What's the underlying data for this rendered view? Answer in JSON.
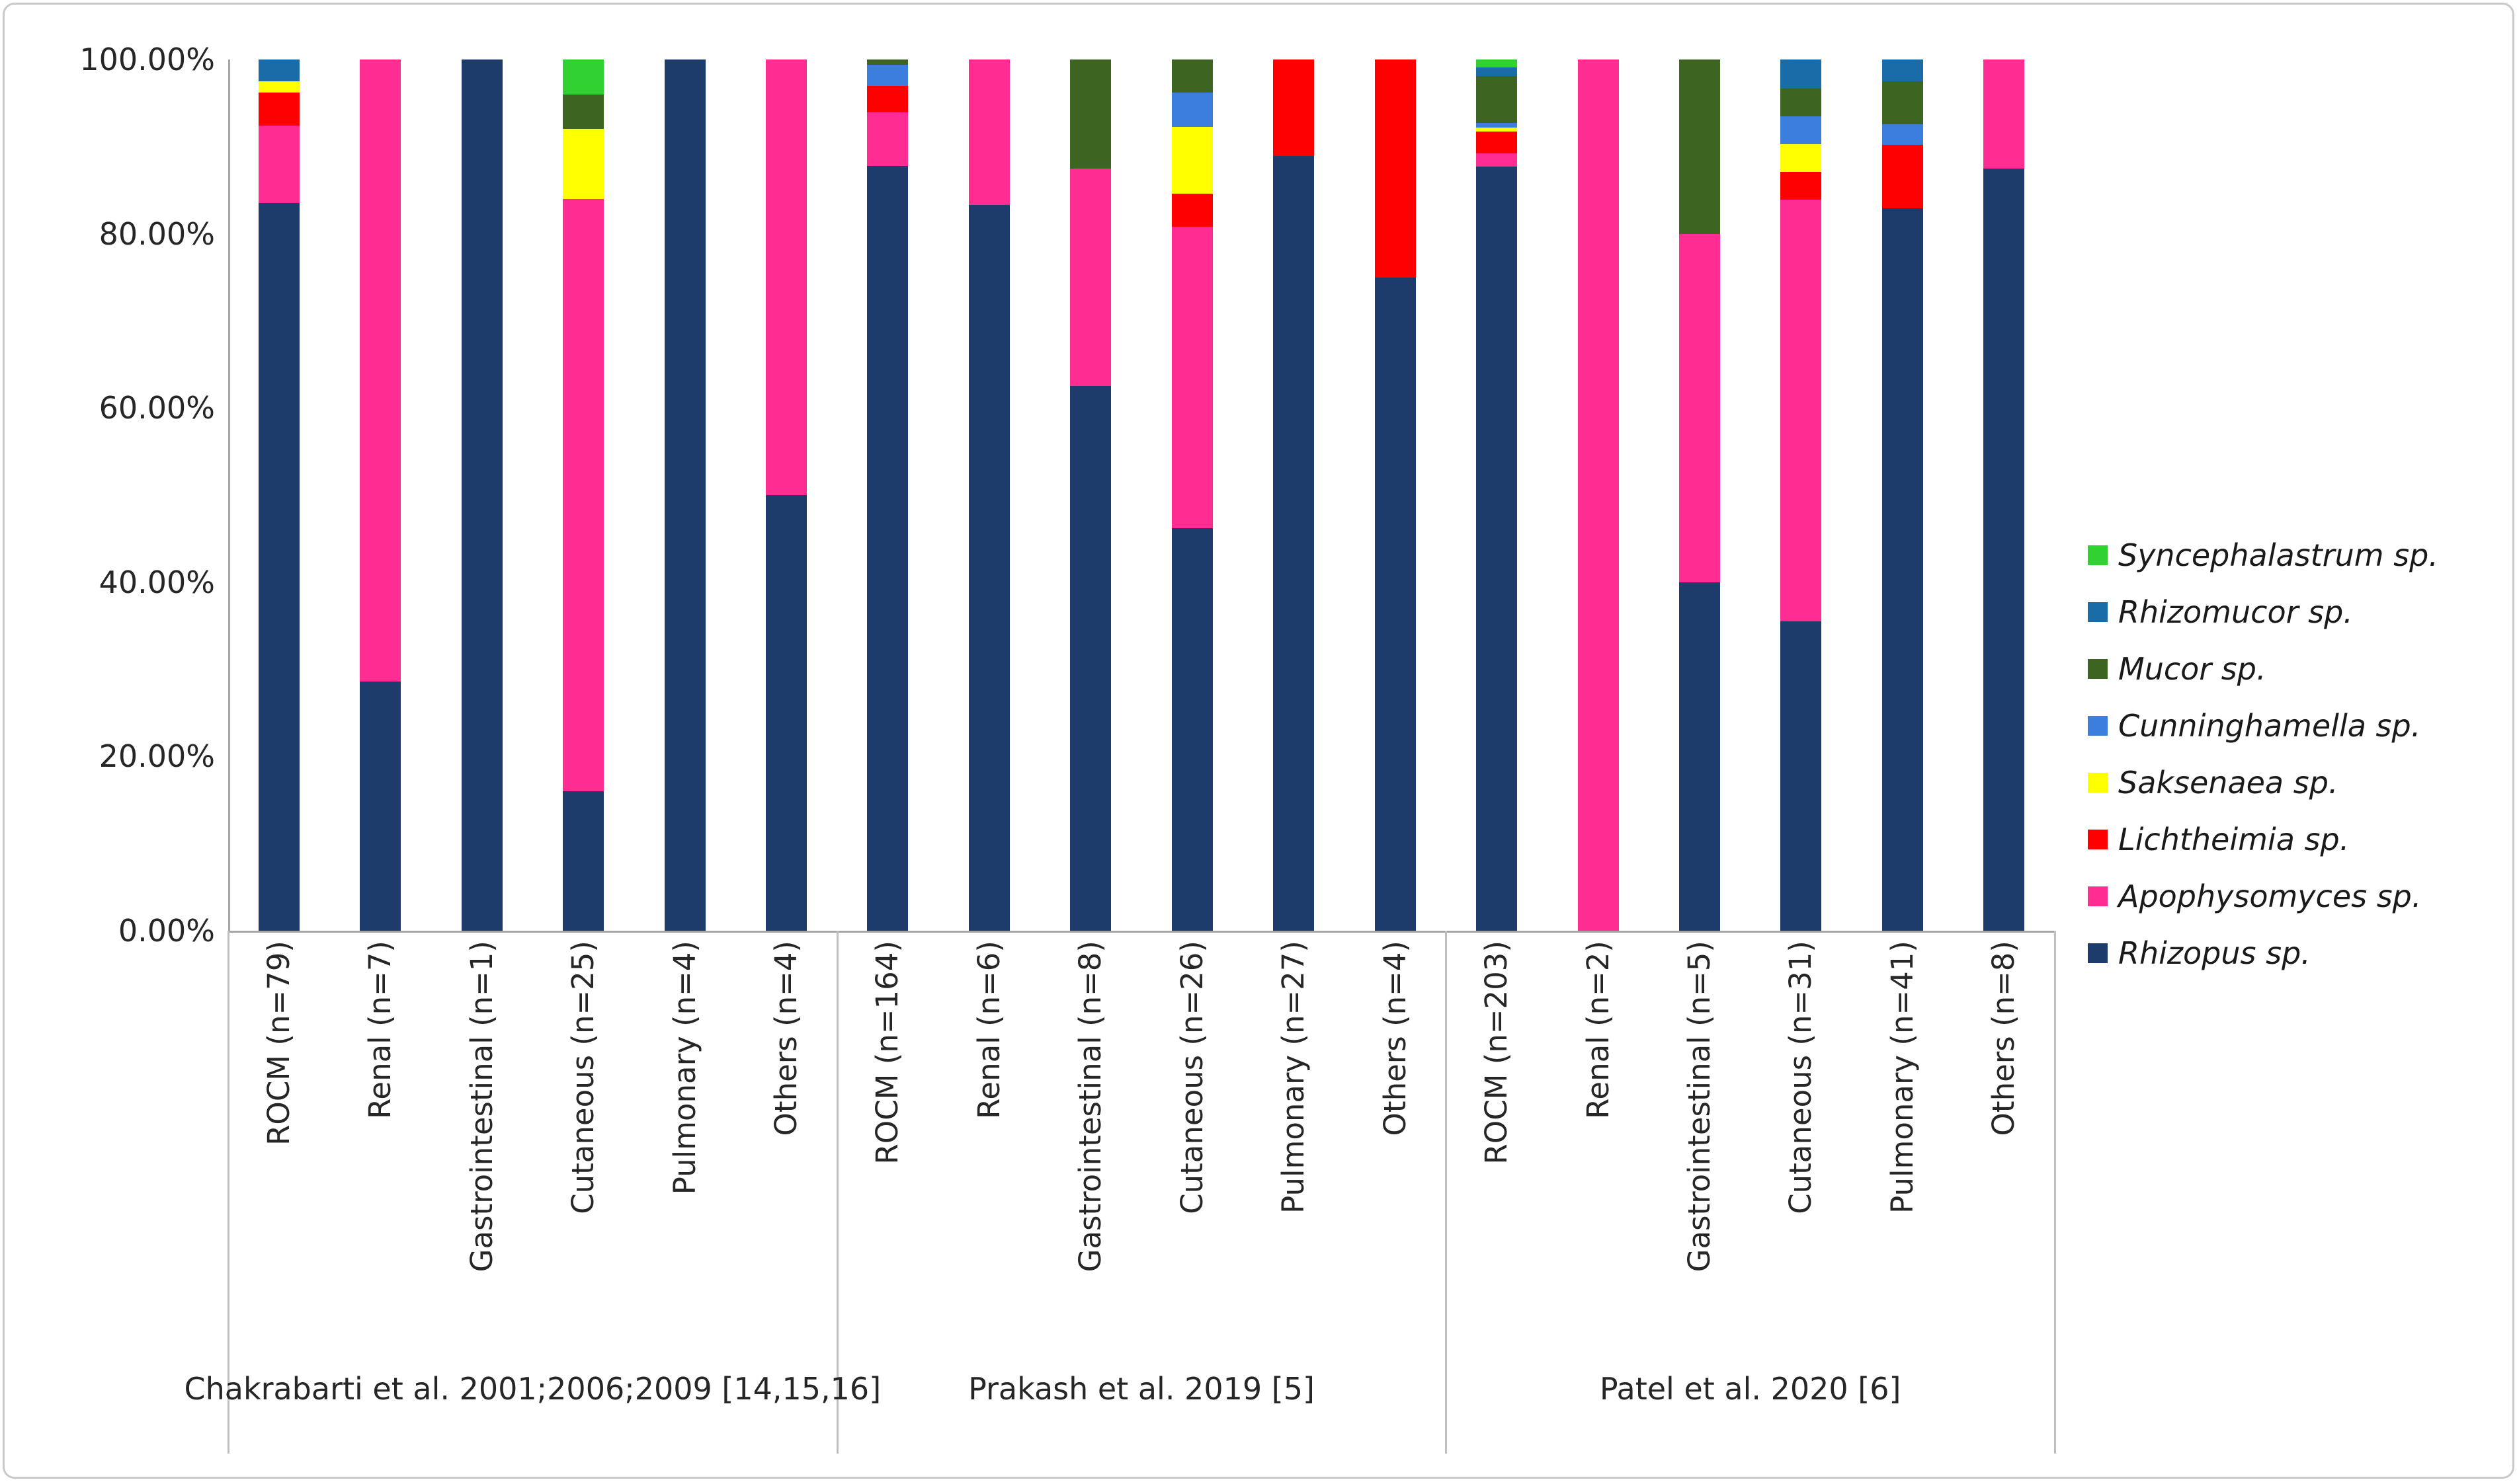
{
  "figure": {
    "background": "#ffffff",
    "border_color": "#c9c9c9"
  },
  "chart_data": {
    "type": "bar",
    "stacked": "percent",
    "title": "",
    "xlabel": "",
    "ylabel": "",
    "y_axis": {
      "min": 0,
      "max": 100,
      "grid": false,
      "ticks": [
        "100.00%",
        "80.00%",
        "60.00%",
        "40.00%",
        "20.00%",
        "0.00%"
      ]
    },
    "legend": {
      "position": "right",
      "items": [
        {
          "label": "Syncephalastrum sp.",
          "color": "#32d132"
        },
        {
          "label": "Rhizomucor sp.",
          "color": "#1a6ca8"
        },
        {
          "label": "Mucor sp.",
          "color": "#3d6421"
        },
        {
          "label": "Cunninghamella sp.",
          "color": "#3b7edd"
        },
        {
          "label": "Saksenaea sp.",
          "color": "#ffff00"
        },
        {
          "label": "Lichtheimia sp.",
          "color": "#ff0000"
        },
        {
          "label": "Apophysomyces sp.",
          "color": "#ff2d92"
        },
        {
          "label": "Rhizopus sp.",
          "color": "#1d3c6b"
        }
      ]
    },
    "species_colors": {
      "Syncephalastrum sp.": "#32d132",
      "Rhizomucor sp.": "#1a6ca8",
      "Mucor sp.": "#3d6421",
      "Cunninghamella sp.": "#3b7edd",
      "Saksenaea sp.": "#ffff00",
      "Lichtheimia sp.": "#ff0000",
      "Apophysomyces sp.": "#ff2d92",
      "Rhizopus sp.": "#1d3c6b"
    },
    "stack_order_bottom_to_top": [
      "Rhizopus sp.",
      "Apophysomyces sp.",
      "Lichtheimia sp.",
      "Saksenaea sp.",
      "Cunninghamella sp.",
      "Mucor sp.",
      "Rhizomucor sp.",
      "Syncephalastrum sp."
    ],
    "groups": [
      {
        "label": "Chakrabarti et al. 2001;2006;2009 [14,15,16]",
        "bars": [
          {
            "label": "ROCM (n=79)",
            "segments": [
              [
                "Rhizopus sp.",
                83.5
              ],
              [
                "Apophysomyces sp.",
                8.9
              ],
              [
                "Lichtheimia sp.",
                3.8
              ],
              [
                "Saksenaea sp.",
                1.3
              ],
              [
                "Rhizomucor sp.",
                2.5
              ]
            ]
          },
          {
            "label": "Renal (n=7)",
            "segments": [
              [
                "Rhizopus sp.",
                28.6
              ],
              [
                "Apophysomyces sp.",
                71.4
              ]
            ]
          },
          {
            "label": "Gastrointestinal (n=1)",
            "segments": [
              [
                "Rhizopus sp.",
                100
              ]
            ]
          },
          {
            "label": "Cutaneous (n=25)",
            "segments": [
              [
                "Rhizopus sp.",
                16
              ],
              [
                "Apophysomyces sp.",
                68
              ],
              [
                "Saksenaea sp.",
                8
              ],
              [
                "Mucor sp.",
                4
              ],
              [
                "Syncephalastrum sp.",
                4
              ]
            ]
          },
          {
            "label": "Pulmonary (n=4)",
            "segments": [
              [
                "Rhizopus sp.",
                100
              ]
            ]
          },
          {
            "label": "Others (n=4)",
            "segments": [
              [
                "Rhizopus sp.",
                50
              ],
              [
                "Apophysomyces sp.",
                50
              ]
            ]
          }
        ]
      },
      {
        "label": "Prakash et al. 2019 [5]",
        "bars": [
          {
            "label": "ROCM (n=164)",
            "segments": [
              [
                "Rhizopus sp.",
                87.8
              ],
              [
                "Apophysomyces sp.",
                6.1
              ],
              [
                "Lichtheimia sp.",
                3.1
              ],
              [
                "Cunninghamella sp.",
                2.4
              ],
              [
                "Mucor sp.",
                0.6
              ]
            ]
          },
          {
            "label": "Renal (n=6)",
            "segments": [
              [
                "Rhizopus sp.",
                83.3
              ],
              [
                "Apophysomyces sp.",
                16.7
              ]
            ]
          },
          {
            "label": "Gastrointestinal (n=8)",
            "segments": [
              [
                "Rhizopus sp.",
                62.5
              ],
              [
                "Apophysomyces sp.",
                25
              ],
              [
                "Mucor sp.",
                12.5
              ]
            ]
          },
          {
            "label": "Cutaneous (n=26)",
            "segments": [
              [
                "Rhizopus sp.",
                46.2
              ],
              [
                "Apophysomyces sp.",
                34.6
              ],
              [
                "Lichtheimia sp.",
                3.8
              ],
              [
                "Saksenaea sp.",
                7.7
              ],
              [
                "Cunninghamella sp.",
                3.9
              ],
              [
                "Mucor sp.",
                3.8
              ]
            ]
          },
          {
            "label": "Pulmonary (n=27)",
            "segments": [
              [
                "Rhizopus sp.",
                88.9
              ],
              [
                "Lichtheimia sp.",
                11.1
              ]
            ]
          },
          {
            "label": "Others (n=4)",
            "segments": [
              [
                "Rhizopus sp.",
                75
              ],
              [
                "Lichtheimia sp.",
                25
              ]
            ]
          }
        ]
      },
      {
        "label": "Patel et al. 2020 [6]",
        "bars": [
          {
            "label": "ROCM (n=203)",
            "segments": [
              [
                "Rhizopus sp.",
                87.7
              ],
              [
                "Apophysomyces sp.",
                1.5
              ],
              [
                "Lichtheimia sp.",
                2.5
              ],
              [
                "Saksenaea sp.",
                0.5
              ],
              [
                "Cunninghamella sp.",
                0.5
              ],
              [
                "Mucor sp.",
                5.4
              ],
              [
                "Rhizomucor sp.",
                1.0
              ],
              [
                "Syncephalastrum sp.",
                0.9
              ]
            ]
          },
          {
            "label": "Renal (n=2)",
            "segments": [
              [
                "Apophysomyces sp.",
                100
              ]
            ]
          },
          {
            "label": "Gastrointestinal (n=5)",
            "segments": [
              [
                "Rhizopus sp.",
                40
              ],
              [
                "Apophysomyces sp.",
                40
              ],
              [
                "Mucor sp.",
                20
              ]
            ]
          },
          {
            "label": "Cutaneous (n=31)",
            "segments": [
              [
                "Rhizopus sp.",
                35.5
              ],
              [
                "Apophysomyces sp.",
                48.4
              ],
              [
                "Lichtheimia sp.",
                3.2
              ],
              [
                "Saksenaea sp.",
                3.2
              ],
              [
                "Cunninghamella sp.",
                3.2
              ],
              [
                "Mucor sp.",
                3.2
              ],
              [
                "Rhizomucor sp.",
                3.3
              ]
            ]
          },
          {
            "label": "Pulmonary (n=41)",
            "segments": [
              [
                "Rhizopus sp.",
                82.9
              ],
              [
                "Lichtheimia sp.",
                7.3
              ],
              [
                "Cunninghamella sp.",
                2.4
              ],
              [
                "Mucor sp.",
                4.9
              ],
              [
                "Rhizomucor sp.",
                2.5
              ]
            ]
          },
          {
            "label": "Others (n=8)",
            "segments": [
              [
                "Rhizopus sp.",
                87.5
              ],
              [
                "Apophysomyces sp.",
                12.5
              ]
            ]
          }
        ]
      }
    ]
  }
}
